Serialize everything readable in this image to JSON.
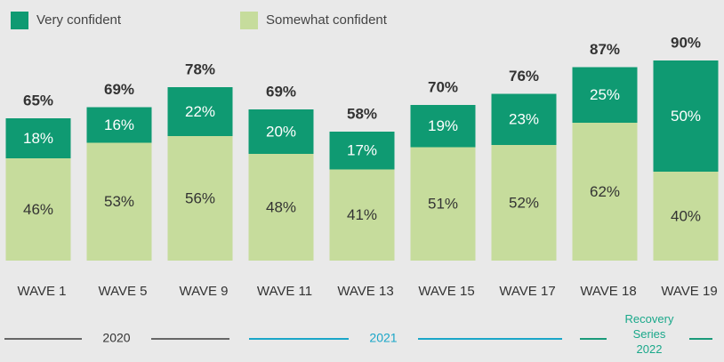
{
  "chart_data": {
    "type": "stacked_bar",
    "categories": [
      "WAVE 1",
      "WAVE 5",
      "WAVE 9",
      "WAVE 11",
      "WAVE 13",
      "WAVE 15",
      "WAVE 17",
      "WAVE 18",
      "WAVE 19"
    ],
    "series": [
      {
        "name": "Somewhat confident",
        "color": "#c6dc9c",
        "values": [
          46,
          53,
          56,
          48,
          41,
          51,
          52,
          62,
          40
        ],
        "value_labels": [
          "46%",
          "53%",
          "56%",
          "48%",
          "41%",
          "51%",
          "52%",
          "62%",
          "40%"
        ]
      },
      {
        "name": "Very confident",
        "color": "#0f9a72",
        "values": [
          18,
          16,
          22,
          20,
          17,
          19,
          23,
          25,
          50
        ],
        "value_labels": [
          "18%",
          "16%",
          "22%",
          "20%",
          "17%",
          "19%",
          "23%",
          "25%",
          "50%"
        ]
      }
    ],
    "totals": {
      "values": [
        65,
        69,
        78,
        69,
        58,
        70,
        76,
        87,
        90
      ],
      "value_labels": [
        "65%",
        "69%",
        "78%",
        "69%",
        "58%",
        "70%",
        "76%",
        "87%",
        "90%"
      ]
    },
    "ylim": [
      0,
      100
    ],
    "periods": [
      "2020",
      "2021",
      "Recovery Series 2022"
    ]
  }
}
